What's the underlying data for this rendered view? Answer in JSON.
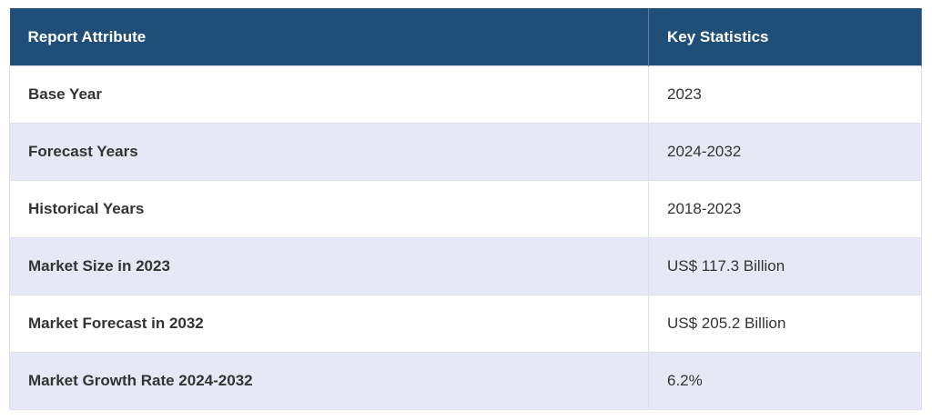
{
  "table": {
    "header": [
      "Report Attribute",
      "Key Statistics"
    ],
    "rows": [
      [
        "Base Year",
        "2023"
      ],
      [
        "Forecast Years",
        "2024-2032"
      ],
      [
        "Historical Years",
        "2018-2023"
      ],
      [
        "Market Size in 2023",
        "US$ 117.3 Billion"
      ],
      [
        "Market Forecast in 2032",
        "US$ 205.2 Billion"
      ],
      [
        "Market Growth Rate 2024-2032",
        "6.2%"
      ]
    ]
  }
}
